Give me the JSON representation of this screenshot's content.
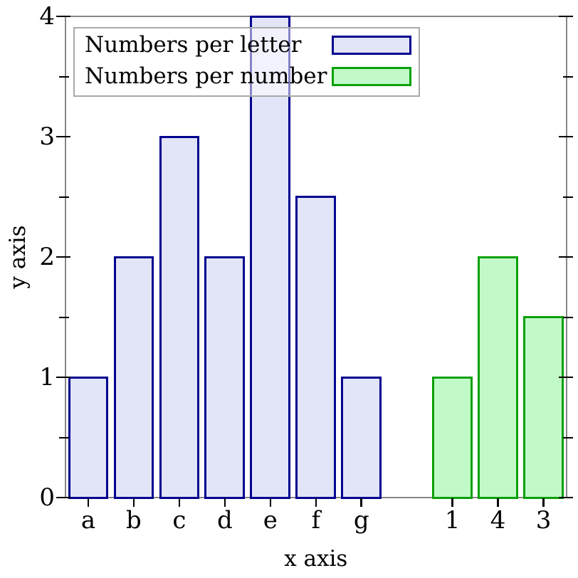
{
  "chart_data": {
    "type": "bar",
    "title": null,
    "xlabel": "x axis",
    "ylabel": "y axis",
    "ylim": [
      0,
      4
    ],
    "y_major_ticks": [
      0,
      1,
      2,
      3,
      4
    ],
    "y_minor_ticks": [
      0.5,
      1.5,
      2.5,
      3.5
    ],
    "grid": false,
    "legend_position": "top-left",
    "series": [
      {
        "name": "Numbers per letter",
        "categories": [
          "a",
          "b",
          "c",
          "d",
          "e",
          "f",
          "g"
        ],
        "values": [
          1,
          2,
          3,
          2,
          4,
          2.5,
          1
        ],
        "fill_color": "#e2e4f7",
        "stroke_color": "#00008f"
      },
      {
        "name": "Numbers per number",
        "categories": [
          "1",
          "4",
          "3"
        ],
        "values": [
          1,
          2,
          1.5
        ],
        "fill_color": "#c1fac8",
        "stroke_color": "#0aa00a"
      }
    ]
  },
  "colors": {
    "frame": "#878787",
    "tick": "#000000",
    "legend_border": "#a9a9a9",
    "legend_bg": "rgba(255,255,255,0.52)"
  }
}
